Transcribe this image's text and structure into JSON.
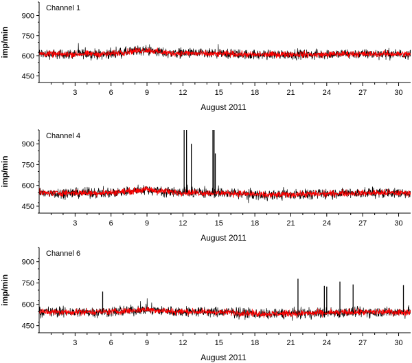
{
  "chart_data": [
    {
      "type": "line",
      "label": "Channel 1",
      "xlabel": "August 2011",
      "ylabel": "imp/min",
      "xlim": [
        0,
        31
      ],
      "ylim": [
        400,
        1000
      ],
      "xticks": [
        3,
        6,
        9,
        12,
        15,
        18,
        21,
        24,
        27,
        30
      ],
      "yticks": [
        450,
        600,
        750,
        900
      ],
      "series": [
        {
          "color": "#000000",
          "x": [
            0,
            1,
            2,
            3,
            4,
            5,
            6,
            7,
            8,
            9,
            10,
            11,
            12,
            13,
            14,
            15,
            16,
            17,
            18,
            19,
            20,
            21,
            22,
            23,
            24,
            25,
            26,
            27,
            28,
            29,
            30,
            31
          ],
          "y": [
            615,
            612,
            610,
            612,
            614,
            612,
            613,
            625,
            635,
            642,
            628,
            618,
            620,
            616,
            613,
            612,
            614,
            610,
            606,
            608,
            610,
            612,
            609,
            607,
            610,
            612,
            614,
            612,
            613,
            614,
            612,
            612
          ],
          "spread": 110
        },
        {
          "color": "#ff0000",
          "x": [
            0,
            1,
            2,
            3,
            4,
            5,
            6,
            7,
            8,
            9,
            10,
            11,
            12,
            13,
            14,
            15,
            16,
            17,
            18,
            19,
            20,
            21,
            22,
            23,
            24,
            25,
            26,
            27,
            28,
            29,
            30,
            31
          ],
          "y": [
            615,
            612,
            610,
            612,
            614,
            612,
            613,
            625,
            635,
            642,
            628,
            618,
            620,
            616,
            613,
            612,
            614,
            610,
            606,
            608,
            610,
            612,
            609,
            607,
            610,
            612,
            614,
            612,
            613,
            614,
            612,
            612
          ],
          "spread": 70
        }
      ]
    },
    {
      "type": "line",
      "label": "Channel 4",
      "xlabel": "August 2011",
      "ylabel": "imp/min",
      "xlim": [
        0,
        31
      ],
      "ylim": [
        400,
        1000
      ],
      "xticks": [
        3,
        6,
        9,
        12,
        15,
        18,
        21,
        24,
        27,
        30
      ],
      "yticks": [
        450,
        600,
        750,
        900
      ],
      "series": [
        {
          "color": "#000000",
          "x": [
            0,
            1,
            2,
            3,
            4,
            5,
            6,
            7,
            8,
            9,
            10,
            11,
            12,
            13,
            14,
            15,
            16,
            17,
            18,
            19,
            20,
            21,
            22,
            23,
            24,
            25,
            26,
            27,
            28,
            29,
            30,
            31
          ],
          "y": [
            545,
            545,
            546,
            546,
            545,
            546,
            548,
            555,
            562,
            570,
            560,
            553,
            550,
            548,
            546,
            545,
            544,
            540,
            536,
            530,
            532,
            535,
            537,
            538,
            540,
            543,
            544,
            545,
            546,
            546,
            545,
            545
          ],
          "spread": 110
        },
        {
          "color": "#ff0000",
          "x": [
            0,
            1,
            2,
            3,
            4,
            5,
            6,
            7,
            8,
            9,
            10,
            11,
            12,
            13,
            14,
            15,
            16,
            17,
            18,
            19,
            20,
            21,
            22,
            23,
            24,
            25,
            26,
            27,
            28,
            29,
            30,
            31
          ],
          "y": [
            545,
            545,
            546,
            546,
            545,
            546,
            548,
            555,
            562,
            570,
            560,
            553,
            550,
            548,
            546,
            545,
            544,
            540,
            536,
            530,
            532,
            535,
            537,
            538,
            540,
            543,
            544,
            545,
            546,
            546,
            545,
            545
          ],
          "spread": 70
        }
      ],
      "spikes": [
        {
          "x": 12.1,
          "y": 1000
        },
        {
          "x": 12.3,
          "y": 1000
        },
        {
          "x": 12.7,
          "y": 900
        },
        {
          "x": 14.5,
          "y": 1000
        },
        {
          "x": 14.6,
          "y": 1000
        },
        {
          "x": 14.7,
          "y": 830
        }
      ]
    },
    {
      "type": "line",
      "label": "Channel 6",
      "xlabel": "August 2011",
      "ylabel": "imp/min",
      "xlim": [
        0,
        31
      ],
      "ylim": [
        400,
        1000
      ],
      "xticks": [
        3,
        6,
        9,
        12,
        15,
        18,
        21,
        24,
        27,
        30
      ],
      "yticks": [
        450,
        600,
        750,
        900
      ],
      "series": [
        {
          "color": "#000000",
          "x": [
            0,
            1,
            2,
            3,
            4,
            5,
            6,
            7,
            8,
            9,
            10,
            11,
            12,
            13,
            14,
            15,
            16,
            17,
            18,
            19,
            20,
            21,
            22,
            23,
            24,
            25,
            26,
            27,
            28,
            29,
            30,
            31
          ],
          "y": [
            548,
            546,
            545,
            546,
            547,
            548,
            548,
            552,
            558,
            565,
            556,
            550,
            549,
            548,
            546,
            545,
            544,
            540,
            536,
            532,
            534,
            536,
            537,
            538,
            540,
            542,
            544,
            545,
            546,
            546,
            545,
            545
          ],
          "spread": 110
        },
        {
          "color": "#ff0000",
          "x": [
            0,
            1,
            2,
            3,
            4,
            5,
            6,
            7,
            8,
            9,
            10,
            11,
            12,
            13,
            14,
            15,
            16,
            17,
            18,
            19,
            20,
            21,
            22,
            23,
            24,
            25,
            26,
            27,
            28,
            29,
            30,
            31
          ],
          "y": [
            548,
            546,
            545,
            546,
            547,
            548,
            548,
            552,
            558,
            565,
            556,
            550,
            549,
            548,
            546,
            545,
            544,
            540,
            536,
            532,
            534,
            536,
            537,
            538,
            540,
            542,
            544,
            545,
            546,
            546,
            545,
            545
          ],
          "spread": 70
        }
      ],
      "spikes": [
        {
          "x": 5.3,
          "y": 690
        },
        {
          "x": 21.6,
          "y": 780
        },
        {
          "x": 23.8,
          "y": 730
        },
        {
          "x": 24.0,
          "y": 725
        },
        {
          "x": 25.1,
          "y": 760
        },
        {
          "x": 26.2,
          "y": 740
        },
        {
          "x": 30.4,
          "y": 735
        }
      ]
    }
  ]
}
